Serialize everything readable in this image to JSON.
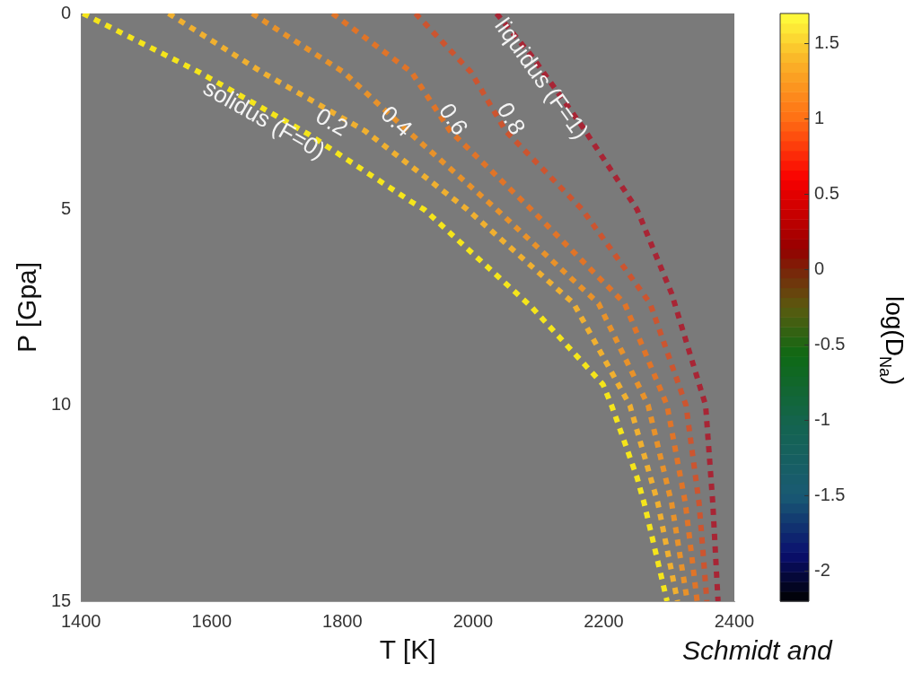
{
  "chart_data": {
    "type": "line",
    "xlabel": "T [K]",
    "ylabel": "P [Gpa]",
    "clabel": "log(D$_{Na}$)",
    "xlim": [
      1400,
      2400
    ],
    "xticks": [
      1400,
      1600,
      1800,
      2000,
      2200,
      2400
    ],
    "ylim": [
      15,
      0
    ],
    "yticks": [
      0,
      5,
      10,
      15
    ],
    "clim": [
      -2.2,
      1.7
    ],
    "cticks": [
      -2,
      -1.5,
      -1,
      -0.5,
      0,
      0.5,
      1,
      1.5
    ],
    "grid": false,
    "legend": false,
    "marker": "none",
    "line_style": "dotted",
    "annotations": [
      "Schmidt and"
    ],
    "series": [
      {
        "name": "solidus (F=0)",
        "color": "#f5e51b",
        "x": [
          1403,
          1580,
          1749,
          1906,
          1925,
          2089,
          2199,
          2212,
          2251,
          2262,
          2297
        ],
        "values": [
          0,
          1.49,
          3.09,
          4.81,
          5,
          7.48,
          9.47,
          10,
          11.84,
          12.5,
          15
        ]
      },
      {
        "name": "0.2",
        "color": "#f0b030",
        "x": [
          1534,
          1677,
          1835,
          1991,
          2154,
          2240,
          2283,
          2313
        ],
        "values": [
          0,
          1.5,
          3,
          5,
          7.4,
          10,
          12.5,
          15
        ]
      },
      {
        "name": "0.4",
        "color": "#e8922a",
        "x": [
          1662,
          1802,
          1900,
          2036,
          2192,
          2268,
          2304,
          2328
        ],
        "values": [
          0,
          1.5,
          3,
          5,
          7.4,
          10,
          12.5,
          15
        ]
      },
      {
        "name": "0.6",
        "color": "#e07428",
        "x": [
          1785,
          1906,
          1965,
          2089,
          2232,
          2297,
          2325,
          2343
        ],
        "values": [
          0,
          1.5,
          3,
          5,
          7.4,
          10,
          12.5,
          15
        ]
      },
      {
        "name": "0.8",
        "color": "#cc5530",
        "x": [
          1912,
          1997,
          2050,
          2167,
          2271,
          2326,
          2346,
          2358
        ],
        "values": [
          0,
          1.5,
          3,
          5,
          7.4,
          10,
          12.5,
          15
        ]
      },
      {
        "name": "liquidus (F=1)",
        "color": "#a82535",
        "x": [
          2036,
          2089,
          2167,
          2251,
          2304,
          2356,
          2367,
          2375
        ],
        "values": [
          0,
          1.07,
          2.88,
          5,
          7.15,
          10,
          12.5,
          15
        ]
      }
    ]
  }
}
